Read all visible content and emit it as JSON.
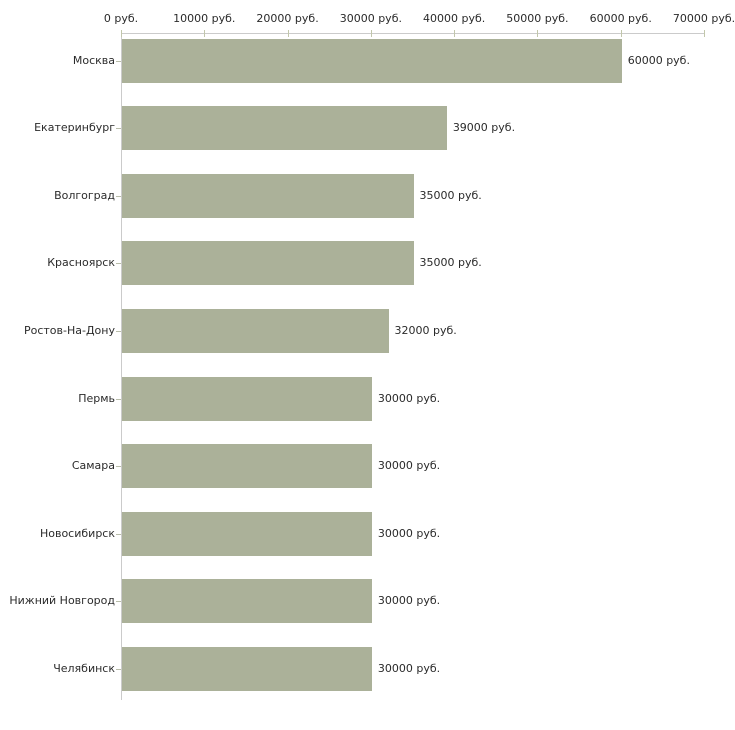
{
  "chart_data": {
    "type": "bar",
    "orientation": "horizontal",
    "unit_suffix": " руб.",
    "categories": [
      "Москва",
      "Екатеринбург",
      "Волгоград",
      "Красноярск",
      "Ростов-На-Дону",
      "Пермь",
      "Самара",
      "Новосибирск",
      "Нижний Новгород",
      "Челябинск"
    ],
    "values": [
      60000,
      39000,
      35000,
      35000,
      32000,
      30000,
      30000,
      30000,
      30000,
      30000
    ],
    "value_labels": [
      "60000 руб.",
      "39000 руб.",
      "35000 руб.",
      "35000 руб.",
      "32000 руб.",
      "30000 руб.",
      "30000 руб.",
      "30000 руб.",
      "30000 руб.",
      "30000 руб."
    ],
    "x_axis": {
      "position": "top",
      "min": 0,
      "max": 70000,
      "tick_values": [
        0,
        10000,
        20000,
        30000,
        40000,
        50000,
        60000,
        70000
      ],
      "tick_labels": [
        "0 руб.",
        "10000 руб.",
        "20000 руб.",
        "30000 руб.",
        "40000 руб.",
        "50000 руб.",
        "60000 руб.",
        "70000 руб."
      ]
    },
    "grid": false,
    "legend": false,
    "colors": {
      "bar_fill": "#abb199",
      "axis_line": "#cbcbcb",
      "tick_mark": "#c2c7ab",
      "text": "#2b2b2b",
      "background": "#ffffff"
    }
  }
}
